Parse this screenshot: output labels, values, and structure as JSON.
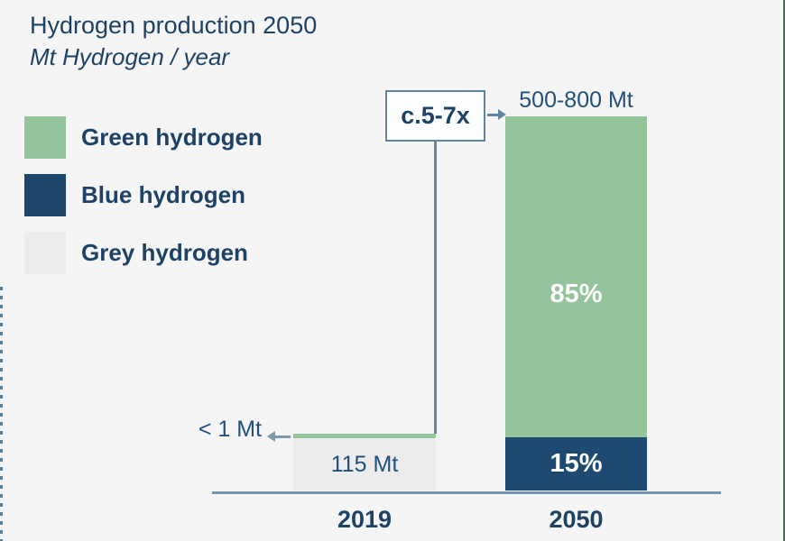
{
  "header": {
    "title": "Hydrogen production 2050",
    "subtitle": "Mt Hydrogen / year"
  },
  "legend": {
    "position": "upper-left",
    "items": [
      {
        "label": "Green hydrogen",
        "color": "#93c49c"
      },
      {
        "label": "Blue hydrogen",
        "color": "#1e466b"
      },
      {
        "label": "Grey hydrogen",
        "color": "#ececec"
      }
    ]
  },
  "chart_data": {
    "type": "bar",
    "stacked": true,
    "title": "Hydrogen production 2050",
    "unit": "Mt Hydrogen / year",
    "categories": [
      "2019",
      "2050"
    ],
    "series": [
      {
        "name": "Green hydrogen",
        "color": "#93c49c",
        "segment_labels": {
          "2019": "< 1 Mt",
          "2050": "85%"
        }
      },
      {
        "name": "Blue hydrogen",
        "color": "#1e4a72",
        "segment_labels": {
          "2050": "15%"
        }
      },
      {
        "name": "Grey hydrogen",
        "color": "#ececec",
        "segment_labels": {
          "2019": "115 Mt"
        }
      }
    ],
    "bar_totals": [
      "115 Mt",
      "500-800 Mt"
    ],
    "growth_callout": "c.5-7x",
    "grid": false,
    "axis_color": "#7593a9",
    "accent_colors": {
      "navy_text": "#1d4266",
      "value_text": "#21507d",
      "callout_border": "#5f85a2",
      "right_edge_green": "#4a6e55",
      "left_edge_dotted": "#5a7d97"
    }
  }
}
